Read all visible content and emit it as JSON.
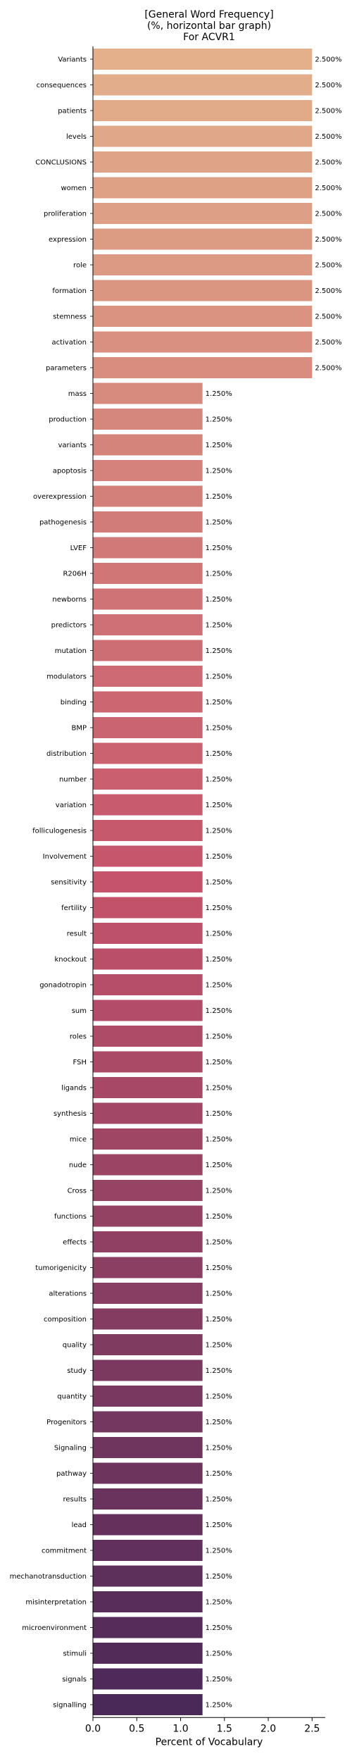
{
  "chart_data": {
    "type": "bar",
    "orientation": "horizontal",
    "title": [
      "[General Word Frequency]",
      "(%, horizontal bar graph)",
      "For ACVR1"
    ],
    "xlabel": "Percent of Vocabulary",
    "ylabel": "",
    "xlim": [
      0,
      2.65
    ],
    "xticks": [
      0.0,
      0.5,
      1.0,
      1.5,
      2.0,
      2.5
    ],
    "xtick_labels": [
      "0.0",
      "0.5",
      "1.0",
      "1.5",
      "2.0",
      "2.5"
    ],
    "grid": false,
    "categories": [
      "Variants",
      "consequences",
      "patients",
      "levels",
      "CONCLUSIONS",
      "women",
      "proliferation",
      "expression",
      "role",
      "formation",
      "stemness",
      "activation",
      "parameters",
      "mass",
      "production",
      "variants",
      "apoptosis",
      "overexpression",
      "pathogenesis",
      "LVEF",
      "R206H",
      "newborns",
      "predictors",
      "mutation",
      "modulators",
      "binding",
      "BMP",
      "distribution",
      "number",
      "variation",
      "folliculogenesis",
      "Involvement",
      "sensitivity",
      "fertility",
      "result",
      "knockout",
      "gonadotropin",
      "sum",
      "roles",
      "FSH",
      "ligands",
      "synthesis",
      "mice",
      "nude",
      "Cross",
      "functions",
      "effects",
      "tumorigenicity",
      "alterations",
      "composition",
      "quality",
      "study",
      "quantity",
      "Progenitors",
      "Signaling",
      "pathway",
      "results",
      "lead",
      "commitment",
      "mechanotransduction",
      "misinterpretation",
      "microenvironment",
      "stimuli",
      "signals",
      "signalling"
    ],
    "values": [
      2.5,
      2.5,
      2.5,
      2.5,
      2.5,
      2.5,
      2.5,
      2.5,
      2.5,
      2.5,
      2.5,
      2.5,
      2.5,
      1.25,
      1.25,
      1.25,
      1.25,
      1.25,
      1.25,
      1.25,
      1.25,
      1.25,
      1.25,
      1.25,
      1.25,
      1.25,
      1.25,
      1.25,
      1.25,
      1.25,
      1.25,
      1.25,
      1.25,
      1.25,
      1.25,
      1.25,
      1.25,
      1.25,
      1.25,
      1.25,
      1.25,
      1.25,
      1.25,
      1.25,
      1.25,
      1.25,
      1.25,
      1.25,
      1.25,
      1.25,
      1.25,
      1.25,
      1.25,
      1.25,
      1.25,
      1.25,
      1.25,
      1.25,
      1.25,
      1.25,
      1.25,
      1.25,
      1.25,
      1.25,
      1.25
    ],
    "value_labels": [
      "2.500%",
      "2.500%",
      "2.500%",
      "2.500%",
      "2.500%",
      "2.500%",
      "2.500%",
      "2.500%",
      "2.500%",
      "2.500%",
      "2.500%",
      "2.500%",
      "2.500%",
      "1.250%",
      "1.250%",
      "1.250%",
      "1.250%",
      "1.250%",
      "1.250%",
      "1.250%",
      "1.250%",
      "1.250%",
      "1.250%",
      "1.250%",
      "1.250%",
      "1.250%",
      "1.250%",
      "1.250%",
      "1.250%",
      "1.250%",
      "1.250%",
      "1.250%",
      "1.250%",
      "1.250%",
      "1.250%",
      "1.250%",
      "1.250%",
      "1.250%",
      "1.250%",
      "1.250%",
      "1.250%",
      "1.250%",
      "1.250%",
      "1.250%",
      "1.250%",
      "1.250%",
      "1.250%",
      "1.250%",
      "1.250%",
      "1.250%",
      "1.250%",
      "1.250%",
      "1.250%",
      "1.250%",
      "1.250%",
      "1.250%",
      "1.250%",
      "1.250%",
      "1.250%",
      "1.250%",
      "1.250%",
      "1.250%",
      "1.250%",
      "1.250%",
      "1.250%"
    ],
    "colors": {
      "start": "#e3b08b",
      "mid": "#c5536b",
      "end": "#4a2858"
    }
  }
}
